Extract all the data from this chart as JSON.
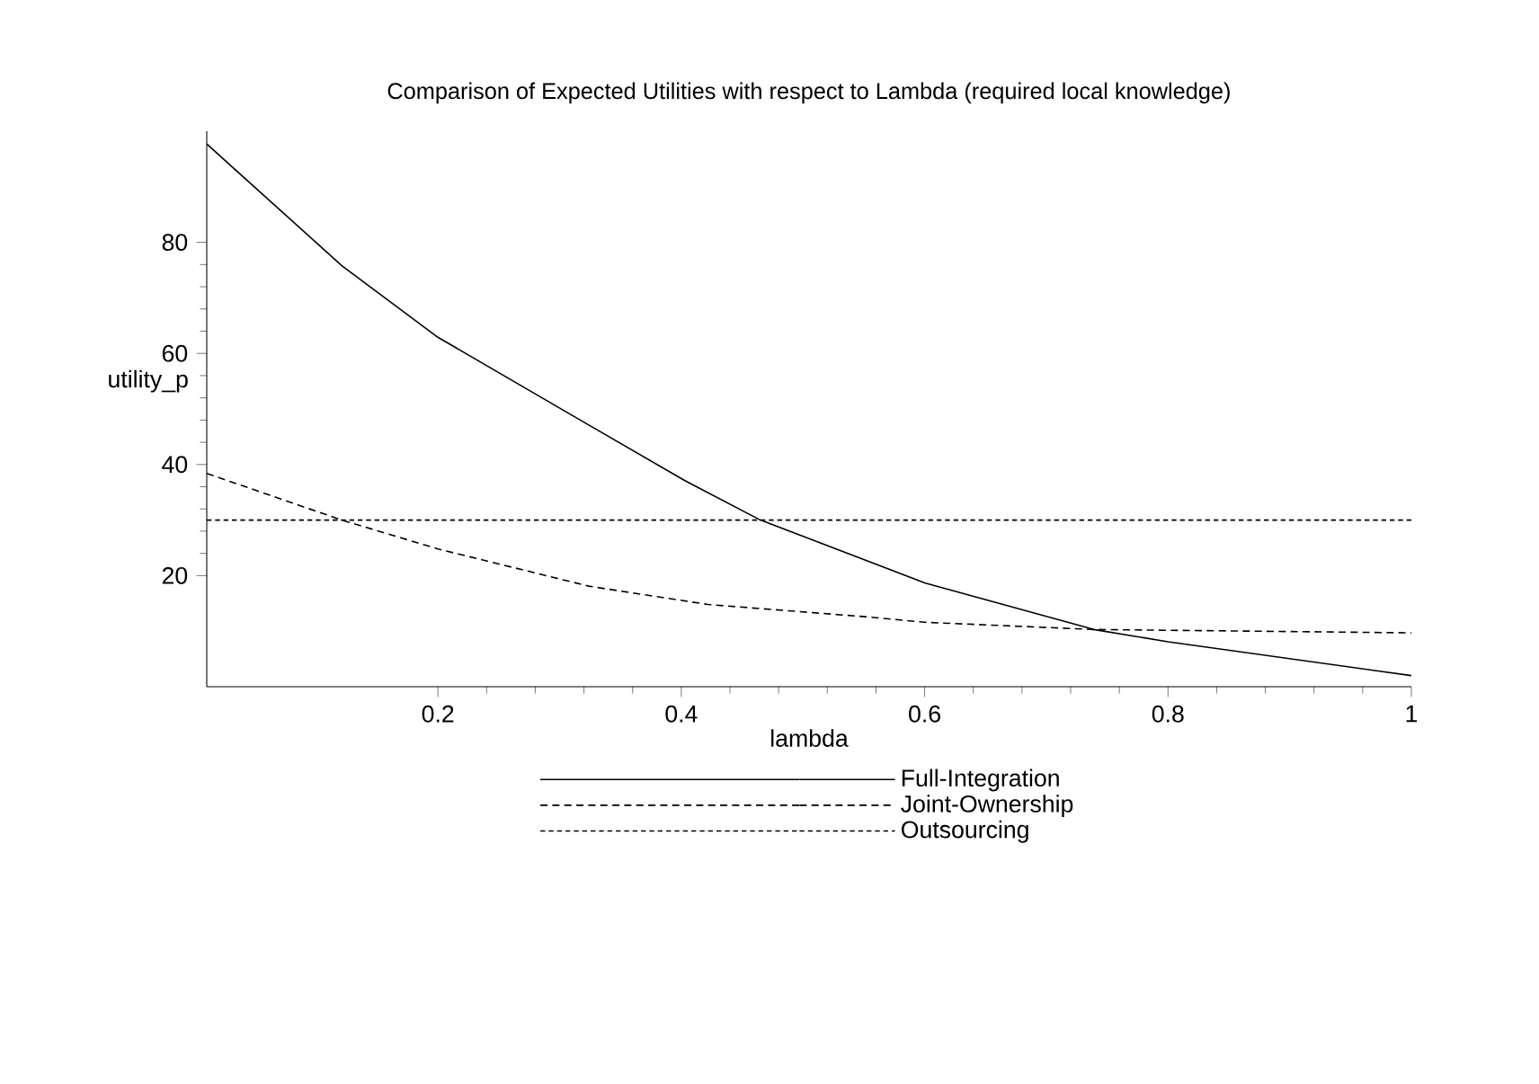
{
  "chart_data": {
    "type": "line",
    "title": "Comparison of Expected Utilities with respect to Lambda (required local knowledge)",
    "xlabel": "lambda",
    "ylabel": "utility_p",
    "xlim": [
      0.01,
      1
    ],
    "ylim": [
      0,
      100
    ],
    "xticks": [
      0.2,
      0.4,
      0.6,
      0.8,
      1
    ],
    "yticks": [
      20,
      40,
      60,
      80
    ],
    "legend": "bottom",
    "grid": false,
    "series": [
      {
        "name": "Full-Integration",
        "color": "#000000",
        "line_style": "solid",
        "x": [
          0.01,
          0.121,
          0.2,
          0.324,
          0.403,
          0.465,
          0.6,
          0.739,
          0.8,
          1
        ],
        "values": [
          97.7,
          75.8,
          62.9,
          47.1,
          37.1,
          30,
          18.7,
          10.3,
          8.1,
          2
        ]
      },
      {
        "name": "Joint-Ownership",
        "color": "#000000",
        "line_style": "dashed",
        "x": [
          0.01,
          0.121,
          0.2,
          0.324,
          0.422,
          0.551,
          0.6,
          0.739,
          1
        ],
        "values": [
          38.4,
          30,
          24.8,
          18.1,
          14.8,
          12.6,
          11.6,
          10.3,
          9.7
        ]
      },
      {
        "name": "Outsourcing",
        "color": "#000000",
        "line_style": "dotted",
        "x": [
          0.01,
          1
        ],
        "values": [
          30,
          30
        ]
      }
    ]
  }
}
